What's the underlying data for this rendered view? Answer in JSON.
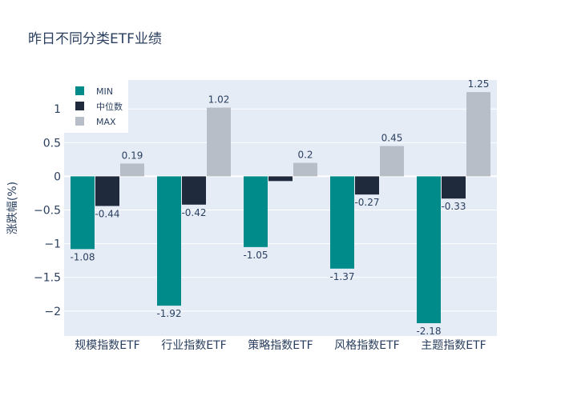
{
  "chart_data": {
    "type": "bar",
    "title": "昨日不同分类ETF业绩",
    "xlabel": "",
    "ylabel": "涨跌幅(%)",
    "categories": [
      "规模指数ETF",
      "行业指数ETF",
      "策略指数ETF",
      "风格指数ETF",
      "主题指数ETF"
    ],
    "series": [
      {
        "name": "MIN",
        "color": "#008b8b",
        "values": [
          -1.08,
          -1.92,
          -1.05,
          -1.37,
          -2.18
        ],
        "labels": [
          "-1.08",
          "-1.92",
          "-1.05",
          "-1.37",
          "-2.18"
        ]
      },
      {
        "name": "中位数",
        "color": "#1f2a3c",
        "values": [
          -0.44,
          -0.42,
          -0.07,
          -0.27,
          -0.33
        ],
        "labels": [
          "-0.44",
          "-0.42",
          "",
          "-0.27",
          "-0.33"
        ]
      },
      {
        "name": "MAX",
        "color": "#b7bec7",
        "values": [
          0.19,
          1.02,
          0.2,
          0.45,
          1.25
        ],
        "labels": [
          "0.19",
          "1.02",
          "0.2",
          "0.45",
          "1.25"
        ]
      }
    ],
    "ylim": [
      -2.37,
      1.43
    ],
    "yticks": [
      1,
      0.5,
      0,
      -0.5,
      -1,
      -1.5,
      -2
    ],
    "ytick_labels": [
      "1",
      "0.5",
      "0",
      "−0.5",
      "−1",
      "−1.5",
      "−2"
    ],
    "grid": true,
    "legend_position": "top-left",
    "plot_background": "#e5ecf6",
    "text_color": "#2a3f5f"
  }
}
